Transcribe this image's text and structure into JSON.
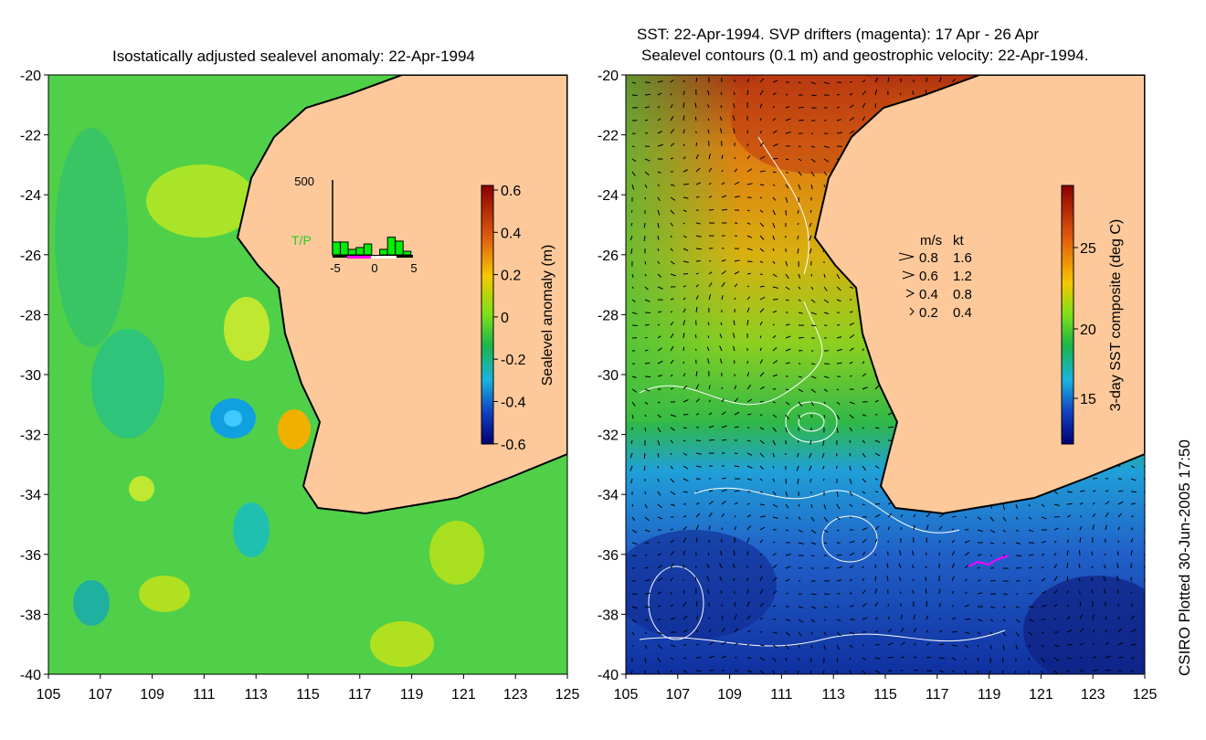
{
  "left_panel": {
    "title": "Isostatically adjusted sealevel anomaly: 22-Apr-1994",
    "colorbar": {
      "label": "Sealevel anomaly (m)",
      "ticks": [
        "0.6",
        "0.4",
        "0.2",
        "0",
        "-0.2",
        "-0.4",
        "-0.6"
      ]
    },
    "histogram": {
      "ymax_label": "500",
      "series_label": "T/P",
      "x_ticks": [
        "-5",
        "0",
        "5"
      ],
      "bins": [
        -5,
        -4,
        -3,
        -2,
        -1,
        0,
        1,
        2,
        3,
        4
      ],
      "counts": [
        86,
        86,
        37,
        49,
        73,
        0,
        37,
        118,
        92,
        24
      ],
      "ymax": 500
    }
  },
  "right_panel": {
    "title_line1": "SST: 22-Apr-1994. SVP drifters (magenta): 17 Apr - 26 Apr",
    "title_line2": "Sealevel contours (0.1 m) and geostrophic velocity: 22-Apr-1994.",
    "colorbar": {
      "label": "3-day SST composite (deg C)",
      "ticks": [
        "25",
        "20",
        "15"
      ]
    },
    "velocity_legend": {
      "header_ms": "m/s",
      "header_kt": "kt",
      "rows": [
        {
          "ms": "0.8",
          "kt": "1.6"
        },
        {
          "ms": "0.6",
          "kt": "1.2"
        },
        {
          "ms": "0.4",
          "kt": "0.8"
        },
        {
          "ms": "0.2",
          "kt": "0.4"
        }
      ]
    }
  },
  "axes": {
    "lat_ticks": [
      "-20",
      "-22",
      "-24",
      "-26",
      "-28",
      "-30",
      "-32",
      "-34",
      "-36",
      "-38",
      "-40"
    ],
    "lon_ticks": [
      "105",
      "107",
      "109",
      "111",
      "113",
      "115",
      "117",
      "119",
      "121",
      "123",
      "125"
    ]
  },
  "credit": "CSIRO Plotted 30-Jun-2005 17:50",
  "colors": {
    "land": "#fdc99b",
    "sea_green": "#4fd24a",
    "drifter": "#ff00ff"
  }
}
